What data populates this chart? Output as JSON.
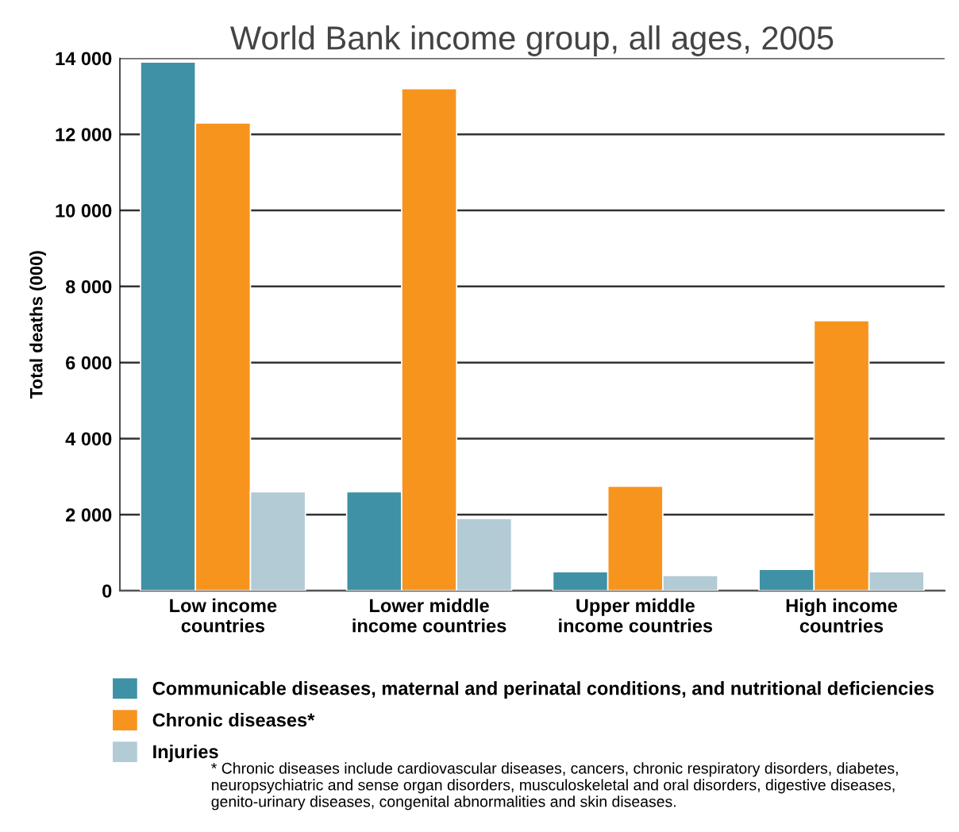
{
  "chart_data": {
    "type": "bar",
    "title": "World Bank income group, all ages, 2005",
    "ylabel": "Total deaths (000)",
    "categories": [
      "Low income\ncountries",
      "Lower middle\nincome countries",
      "Upper middle\nincome countries",
      "High income\ncountries"
    ],
    "series": [
      {
        "name": "Communicable diseases, maternal and perinatal conditions, and nutritional deficiencies",
        "color": "#3f91a5",
        "values": [
          13900,
          2600,
          500,
          560
        ]
      },
      {
        "name": "Chronic diseases*",
        "color": "#f7941e",
        "values": [
          12300,
          13200,
          2750,
          7100
        ]
      },
      {
        "name": "Injuries",
        "color": "#b2cbd4",
        "values": [
          2600,
          1900,
          400,
          500
        ]
      }
    ],
    "ylim": [
      0,
      14000
    ],
    "yticks": [
      {
        "value": 0,
        "label": "0"
      },
      {
        "value": 2000,
        "label": "2 000"
      },
      {
        "value": 4000,
        "label": "4 000"
      },
      {
        "value": 6000,
        "label": "6 000"
      },
      {
        "value": 8000,
        "label": "8 000"
      },
      {
        "value": 10000,
        "label": "10 000"
      },
      {
        "value": 12000,
        "label": "12 000"
      },
      {
        "value": 14000,
        "label": "14 000"
      }
    ],
    "grid": "y",
    "legend": "bottom",
    "annotations": [
      "* Chronic diseases include cardiovascular diseases, cancers, chronic respiratory disorders, diabetes, neuropsychiatric and sense organ disorders, musculoskeletal and oral disorders, digestive diseases, genito-urinary diseases, congenital abnormalities and skin diseases."
    ]
  }
}
